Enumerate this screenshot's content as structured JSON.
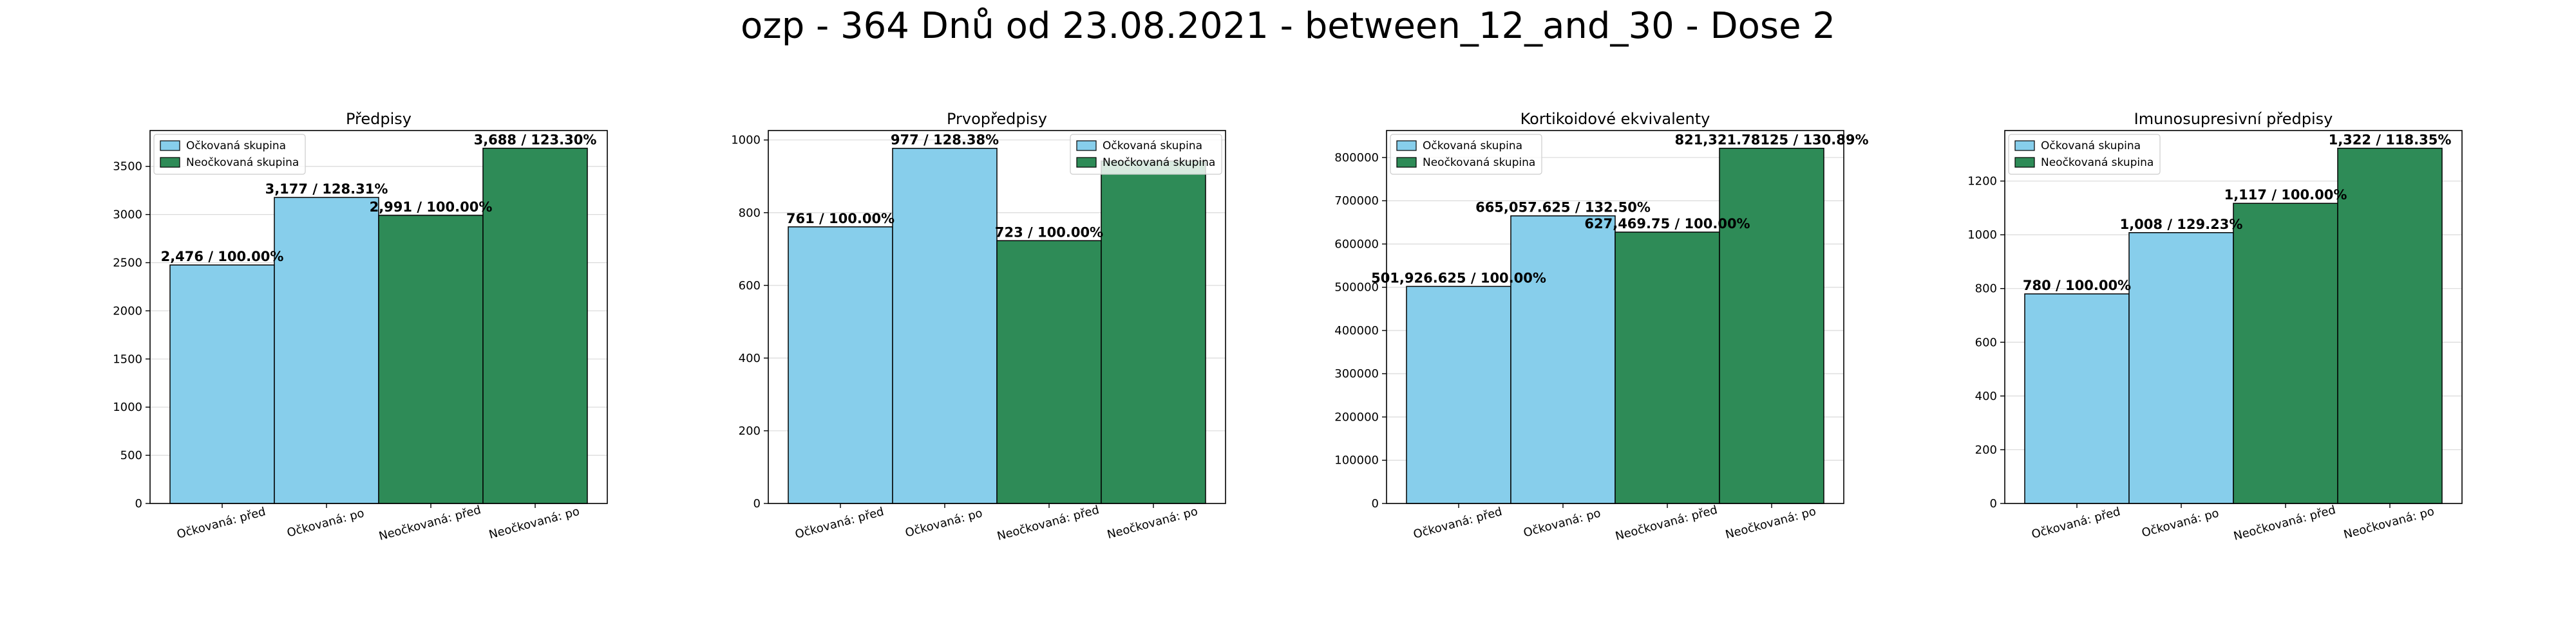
{
  "figure": {
    "title": "ozp - 364 Dnů od 23.08.2021 - between_12_and_30 - Dose 2"
  },
  "colors": {
    "vaccinated": "#87ceeb",
    "unvaccinated": "#2e8b57",
    "edge": "#000000",
    "grid": "#d9d9d9"
  },
  "chart_data": [
    {
      "type": "bar",
      "title": "Předpisy",
      "categories": [
        "Očkovaná: před",
        "Očkovaná: po",
        "Neočkovaná: před",
        "Neočkovaná: po"
      ],
      "values": [
        2476,
        3177,
        2991,
        3688
      ],
      "bar_labels": [
        "2,476 / 100.00%",
        "3,177 / 128.31%",
        "2,991 / 100.00%",
        "3,688 / 123.30%"
      ],
      "groups": [
        "vaccinated",
        "vaccinated",
        "unvaccinated",
        "unvaccinated"
      ],
      "legend": [
        "Očkovaná skupina",
        "Neočkovaná skupina"
      ],
      "legend_position": "top-left",
      "ylim": [
        0,
        3872
      ],
      "yticks": [
        0,
        500,
        1000,
        1500,
        2000,
        2500,
        3000,
        3500
      ],
      "ytick_labels": [
        "0",
        "500",
        "1000",
        "1500",
        "2000",
        "2500",
        "3000",
        "3500"
      ],
      "grid": true
    },
    {
      "type": "bar",
      "title": "Prvopředpisy",
      "categories": [
        "Očkovaná: před",
        "Očkovaná: po",
        "Neočkovaná: před",
        "Neočkovaná: po"
      ],
      "values": [
        761,
        977,
        723,
        942
      ],
      "bar_labels": [
        "761 / 100.00%",
        "977 / 128.38%",
        "723 / 100.00%",
        ""
      ],
      "groups": [
        "vaccinated",
        "vaccinated",
        "unvaccinated",
        "unvaccinated"
      ],
      "legend": [
        "Očkovaná skupina",
        "Neočkovaná skupina"
      ],
      "legend_position": "top-right",
      "ylim": [
        0,
        1026
      ],
      "yticks": [
        0,
        200,
        400,
        600,
        800,
        1000
      ],
      "ytick_labels": [
        "0",
        "200",
        "400",
        "600",
        "800",
        "1000"
      ],
      "grid": true
    },
    {
      "type": "bar",
      "title": "Kortikoidové ekvivalenty",
      "categories": [
        "Očkovaná: před",
        "Očkovaná: po",
        "Neočkovaná: před",
        "Neočkovaná: po"
      ],
      "values": [
        501926.625,
        665057.625,
        627469.75,
        821321.78125
      ],
      "bar_labels": [
        "501,926.625 / 100.00%",
        "665,057.625 / 132.50%",
        "627,469.75 / 100.00%",
        "821,321.78125 / 130.89%"
      ],
      "groups": [
        "vaccinated",
        "vaccinated",
        "unvaccinated",
        "unvaccinated"
      ],
      "legend": [
        "Očkovaná skupina",
        "Neočkovaná skupina"
      ],
      "legend_position": "top-left",
      "ylim": [
        0,
        862388
      ],
      "yticks": [
        0,
        100000,
        200000,
        300000,
        400000,
        500000,
        600000,
        700000,
        800000
      ],
      "ytick_labels": [
        "0",
        "100000",
        "200000",
        "300000",
        "400000",
        "500000",
        "600000",
        "700000",
        "800000"
      ],
      "grid": true
    },
    {
      "type": "bar",
      "title": "Imunosupresivní předpisy",
      "categories": [
        "Očkovaná: před",
        "Očkovaná: po",
        "Neočkovaná: před",
        "Neočkovaná: po"
      ],
      "values": [
        780,
        1008,
        1117,
        1322
      ],
      "bar_labels": [
        "780 / 100.00%",
        "1,008 / 129.23%",
        "1,117 / 100.00%",
        "1,322 / 118.35%"
      ],
      "groups": [
        "vaccinated",
        "vaccinated",
        "unvaccinated",
        "unvaccinated"
      ],
      "legend": [
        "Očkovaná skupina",
        "Neočkovaná skupina"
      ],
      "legend_position": "top-left",
      "ylim": [
        0,
        1388
      ],
      "yticks": [
        0,
        200,
        400,
        600,
        800,
        1000,
        1200
      ],
      "ytick_labels": [
        "0",
        "200",
        "400",
        "600",
        "800",
        "1000",
        "1200"
      ],
      "grid": true
    }
  ]
}
